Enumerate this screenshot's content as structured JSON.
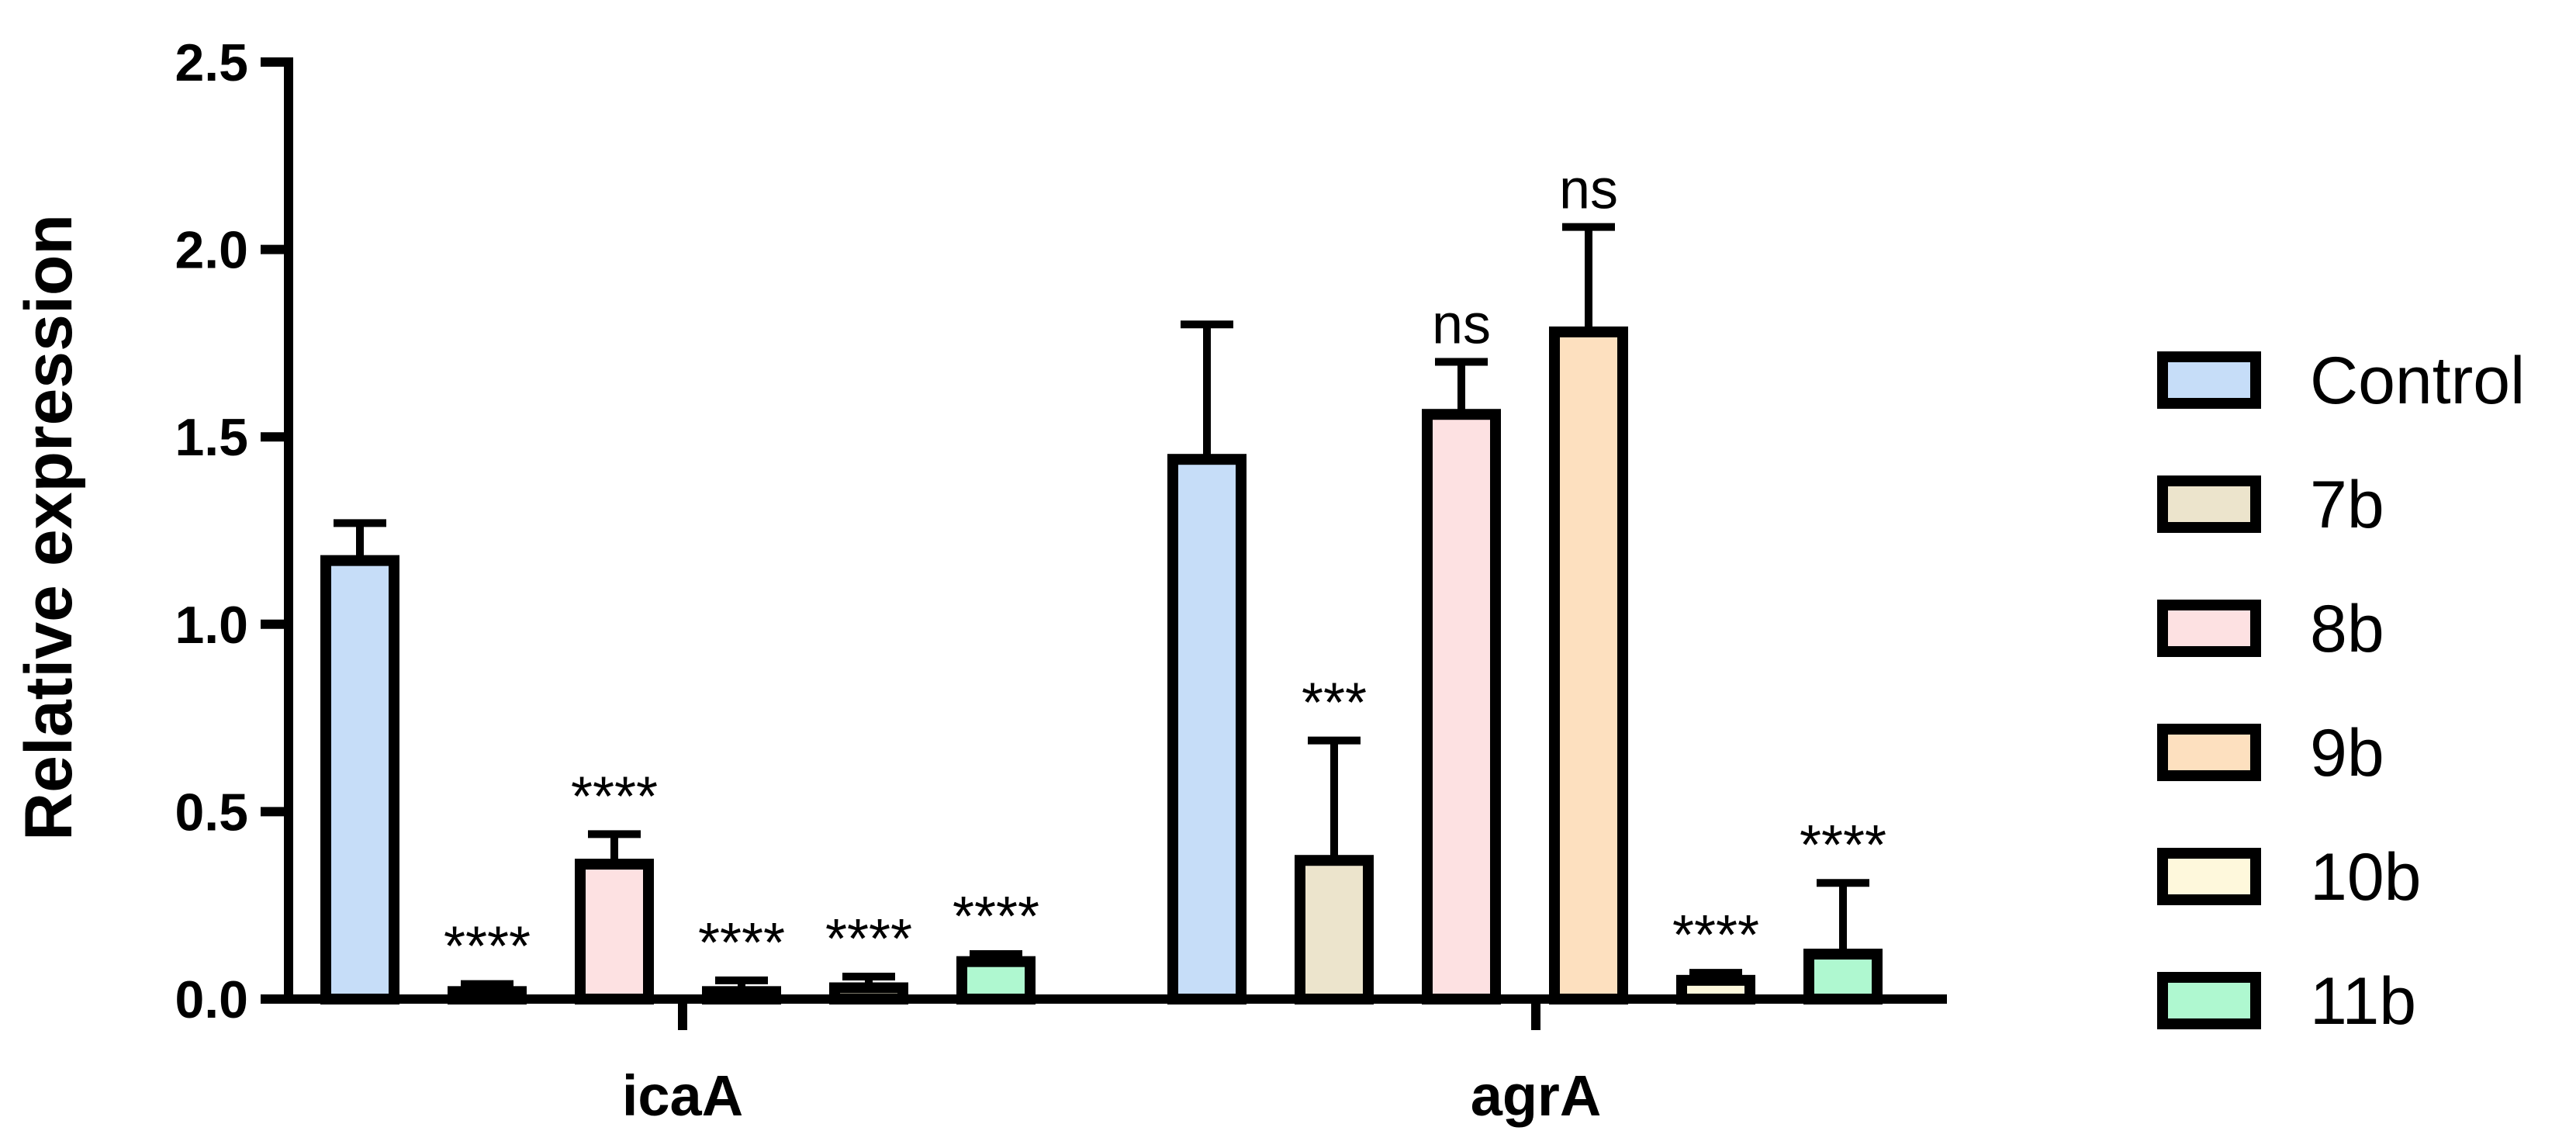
{
  "chart_data": {
    "type": "bar",
    "title": "",
    "xlabel": "",
    "ylabel": "Relative expression",
    "ylim": [
      0,
      2.5
    ],
    "yticks": [
      "0.0",
      "0.5",
      "1.0",
      "1.5",
      "2.0",
      "2.5"
    ],
    "grid": false,
    "legend_position": "right",
    "categories": [
      "icaA",
      "agrA"
    ],
    "series": [
      {
        "name": "Control",
        "color": "#C6DDF8",
        "values": [
          1.17,
          1.44
        ],
        "errors": [
          0.1,
          0.36
        ],
        "significance": [
          "",
          ""
        ]
      },
      {
        "name": "7b",
        "color": "#ECE4CC",
        "values": [
          0.02,
          0.37
        ],
        "errors": [
          0.02,
          0.32
        ],
        "significance": [
          "****",
          "***"
        ]
      },
      {
        "name": "8b",
        "color": "#FDE1E2",
        "values": [
          0.36,
          1.56
        ],
        "errors": [
          0.08,
          0.14
        ],
        "significance": [
          "****",
          "ns"
        ]
      },
      {
        "name": "9b",
        "color": "#FDE0BF",
        "values": [
          0.02,
          1.78
        ],
        "errors": [
          0.03,
          0.28
        ],
        "significance": [
          "****",
          "ns"
        ]
      },
      {
        "name": "10b",
        "color": "#FEF8DC",
        "values": [
          0.03,
          0.05
        ],
        "errors": [
          0.03,
          0.02
        ],
        "significance": [
          "****",
          "****"
        ]
      },
      {
        "name": "11b",
        "color": "#AFF8D0",
        "values": [
          0.1,
          0.12
        ],
        "errors": [
          0.02,
          0.19
        ],
        "significance": [
          "****",
          "****"
        ]
      }
    ]
  }
}
